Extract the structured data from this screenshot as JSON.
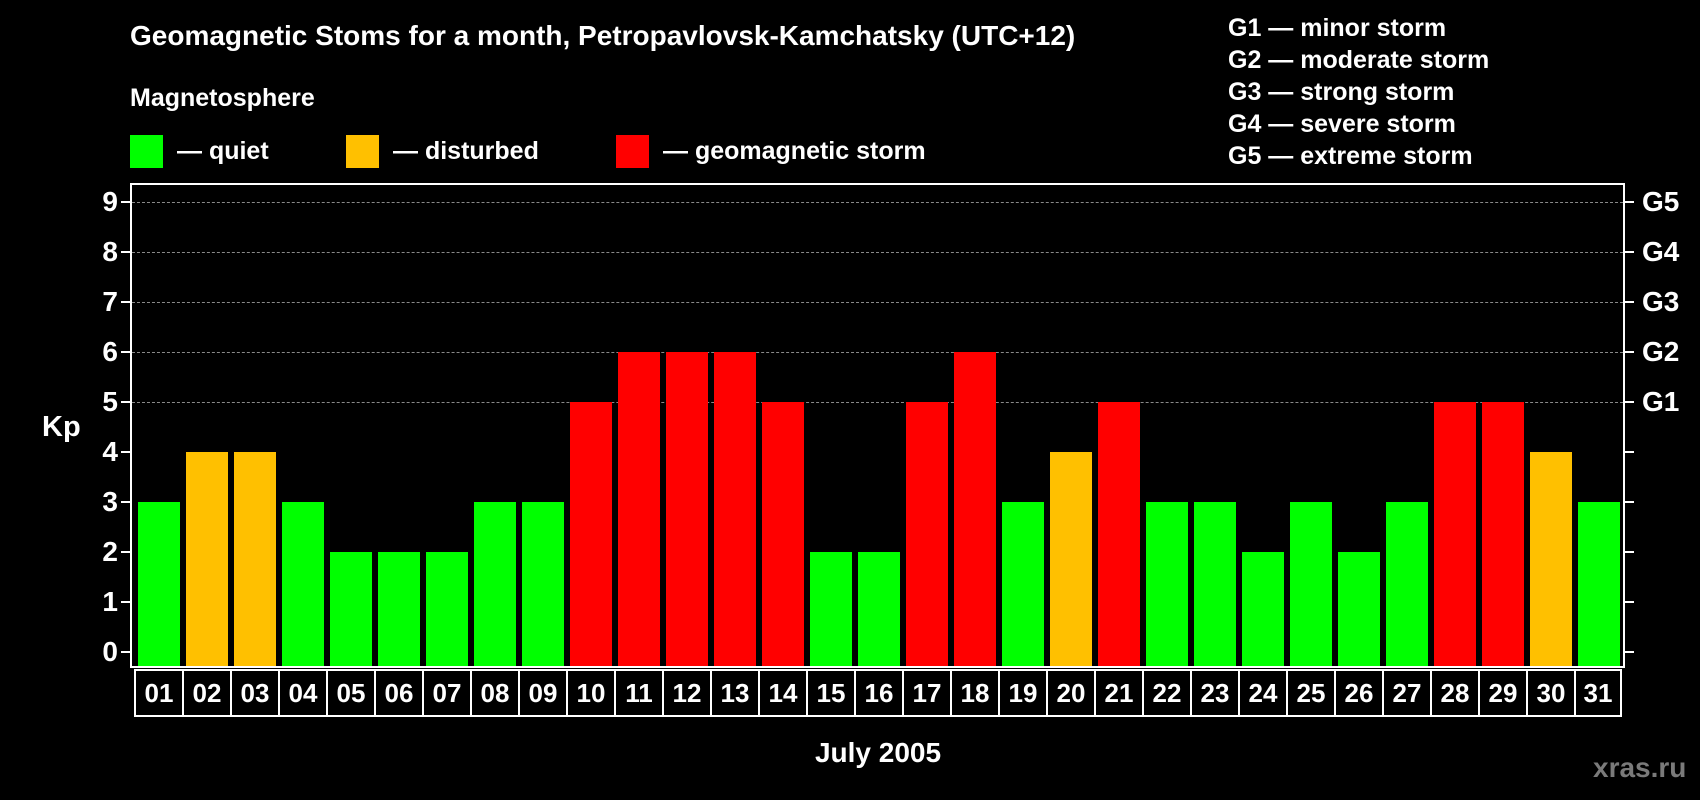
{
  "title": "Geomagnetic Stoms for a month, Petropavlovsk-Kamchatsky (UTC+12)",
  "subtitle": "Magnetosphere",
  "legend": [
    {
      "label": "— quiet",
      "color": "#00ff00"
    },
    {
      "label": "— disturbed",
      "color": "#ffc000"
    },
    {
      "label": "— geomagnetic storm",
      "color": "#ff0000"
    }
  ],
  "g_legend": [
    "G1 — minor storm",
    "G2 — moderate storm",
    "G3 — strong storm",
    "G4 — severe storm",
    "G5 — extreme storm"
  ],
  "watermark": "xras.ru",
  "chart_data": {
    "type": "bar",
    "title": "Geomagnetic Stoms for a month, Petropavlovsk-Kamchatsky (UTC+12)",
    "subtitle": "Magnetosphere",
    "xlabel": "July 2005",
    "ylabel": "Kp",
    "ylim": [
      0,
      9
    ],
    "yticks": [
      0,
      1,
      2,
      3,
      4,
      5,
      6,
      7,
      8,
      9
    ],
    "right_axis_labels": [
      {
        "value": 5,
        "label": "G1"
      },
      {
        "value": 6,
        "label": "G2"
      },
      {
        "value": 7,
        "label": "G3"
      },
      {
        "value": 8,
        "label": "G4"
      },
      {
        "value": 9,
        "label": "G5"
      }
    ],
    "grid": "dashed horizontal lines at Kp 5-9",
    "categories": [
      "01",
      "02",
      "03",
      "04",
      "05",
      "06",
      "07",
      "08",
      "09",
      "10",
      "11",
      "12",
      "13",
      "14",
      "15",
      "16",
      "17",
      "18",
      "19",
      "20",
      "21",
      "22",
      "23",
      "24",
      "25",
      "26",
      "27",
      "28",
      "29",
      "30",
      "31"
    ],
    "values": [
      3,
      4,
      4,
      3,
      2,
      2,
      2,
      3,
      3,
      5,
      6,
      6,
      6,
      5,
      2,
      2,
      5,
      6,
      3,
      4,
      5,
      3,
      3,
      2,
      3,
      2,
      3,
      5,
      5,
      4,
      3
    ],
    "status": [
      "quiet",
      "disturbed",
      "disturbed",
      "quiet",
      "quiet",
      "quiet",
      "quiet",
      "quiet",
      "quiet",
      "storm",
      "storm",
      "storm",
      "storm",
      "storm",
      "quiet",
      "quiet",
      "storm",
      "storm",
      "quiet",
      "disturbed",
      "storm",
      "quiet",
      "quiet",
      "quiet",
      "quiet",
      "quiet",
      "quiet",
      "storm",
      "storm",
      "disturbed",
      "quiet"
    ],
    "colors": {
      "quiet": "#00ff00",
      "disturbed": "#ffc000",
      "storm": "#ff0000"
    }
  }
}
